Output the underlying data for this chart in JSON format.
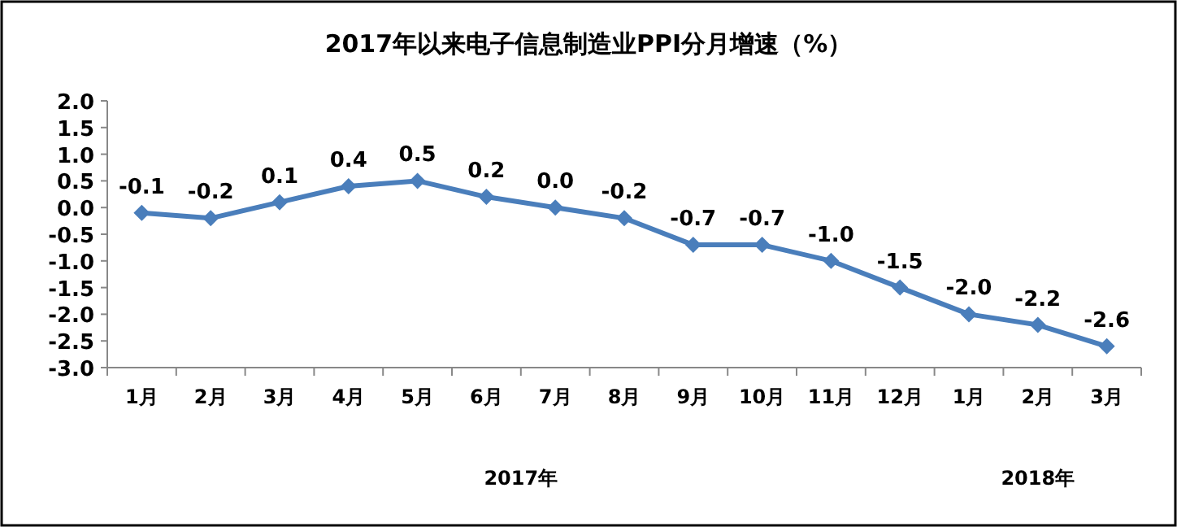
{
  "chart_data": {
    "type": "line",
    "title": "2017年以来电子信息制造业PPI分月增速（%）",
    "categories": [
      "1月",
      "2月",
      "3月",
      "4月",
      "5月",
      "6月",
      "7月",
      "8月",
      "9月",
      "10月",
      "11月",
      "12月",
      "1月",
      "2月",
      "3月"
    ],
    "series": [
      {
        "color": "#4a7ebb",
        "values": [
          -0.1,
          -0.2,
          0.1,
          0.4,
          0.5,
          0.2,
          0.0,
          -0.2,
          -0.7,
          -0.7,
          -1.0,
          -1.5,
          -2.0,
          -2.2,
          -2.6
        ],
        "value_labels": [
          "-0.1",
          "-0.2",
          "0.1",
          "0.4",
          "0.5",
          "0.2",
          "0.0",
          "-0.2",
          "-0.7",
          "-0.7",
          "-1.0",
          "-1.5",
          "-2.0",
          "-2.2",
          "-2.6"
        ]
      }
    ],
    "ylim": [
      -3,
      2
    ],
    "yticks": [
      {
        "value": -3,
        "label": "-3.0"
      },
      {
        "value": -2.5,
        "label": "-2.5"
      },
      {
        "value": -2,
        "label": "-2.0"
      },
      {
        "value": -1.5,
        "label": "-1.5"
      },
      {
        "value": -1,
        "label": "-1.0"
      },
      {
        "value": -0.5,
        "label": "-0.5"
      },
      {
        "value": 0,
        "label": "0.0"
      },
      {
        "value": 0.5,
        "label": "0.5"
      },
      {
        "value": 1,
        "label": "1.0"
      },
      {
        "value": 1.5,
        "label": "1.5"
      },
      {
        "value": 2,
        "label": "2.0"
      }
    ],
    "annotations": [
      "2017年",
      "2018年"
    ],
    "marker": "diamond",
    "line_style": "solid",
    "grid": false
  }
}
